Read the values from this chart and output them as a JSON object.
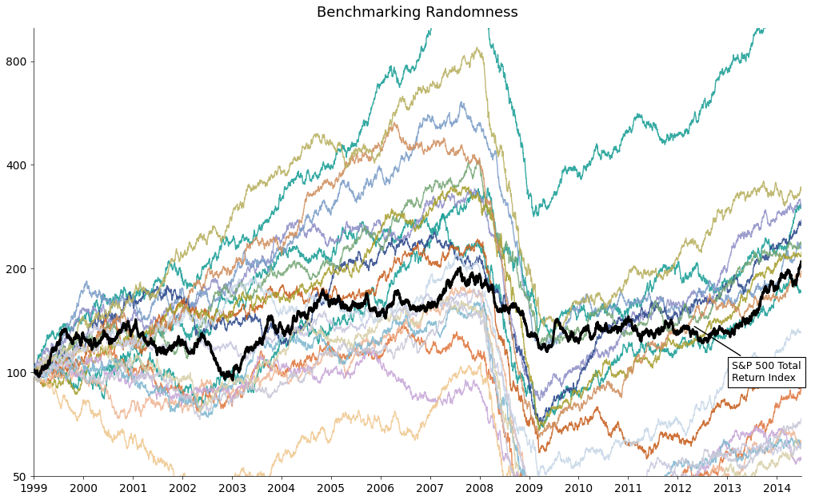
{
  "title": "Benchmarking Randomness",
  "title_fontsize": 13,
  "ylim": [
    50,
    1000
  ],
  "yticks": [
    50,
    100,
    200,
    400,
    800
  ],
  "ytick_labels": [
    "50",
    "100",
    "200",
    "400",
    "800"
  ],
  "xtick_years": [
    1999,
    2000,
    2001,
    2002,
    2003,
    2004,
    2005,
    2006,
    2007,
    2008,
    2009,
    2010,
    2011,
    2012,
    2013,
    2014
  ],
  "sp500_color": "#000000",
  "sp500_linewidth": 2.2,
  "random_linewidth": 1.0,
  "background_color": "#ffffff",
  "annotation_text": "S&P 500 Total\nReturn Index",
  "line_params": [
    {
      "seed": 101,
      "drift": 0.28,
      "vol": 0.15,
      "color": "#1a9e96"
    },
    {
      "seed": 202,
      "drift": 0.24,
      "vol": 0.16,
      "color": "#1a9e96"
    },
    {
      "seed": 303,
      "drift": 0.22,
      "vol": 0.15,
      "color": "#1a9e96"
    },
    {
      "seed": 404,
      "drift": 0.2,
      "vol": 0.14,
      "color": "#9090c8"
    },
    {
      "seed": 505,
      "drift": 0.19,
      "vol": 0.15,
      "color": "#7b9dc8"
    },
    {
      "seed": 606,
      "drift": 0.18,
      "vol": 0.14,
      "color": "#2e4a8c"
    },
    {
      "seed": 707,
      "drift": 0.17,
      "vol": 0.14,
      "color": "#e07840"
    },
    {
      "seed": 808,
      "drift": 0.16,
      "vol": 0.14,
      "color": "#c86020"
    },
    {
      "seed": 909,
      "drift": 0.16,
      "vol": 0.13,
      "color": "#78a878"
    },
    {
      "seed": 1010,
      "drift": 0.15,
      "vol": 0.13,
      "color": "#a8a030"
    },
    {
      "seed": 1111,
      "drift": 0.15,
      "vol": 0.14,
      "color": "#d09060"
    },
    {
      "seed": 1212,
      "drift": 0.14,
      "vol": 0.13,
      "color": "#f0b898"
    },
    {
      "seed": 1313,
      "drift": 0.14,
      "vol": 0.13,
      "color": "#c8a8d8"
    },
    {
      "seed": 1414,
      "drift": 0.13,
      "vol": 0.13,
      "color": "#80b8d0"
    },
    {
      "seed": 1515,
      "drift": 0.13,
      "vol": 0.14,
      "color": "#b8b060"
    },
    {
      "seed": 1616,
      "drift": 0.12,
      "vol": 0.13,
      "color": "#f0c890"
    },
    {
      "seed": 1717,
      "drift": 0.12,
      "vol": 0.13,
      "color": "#d8d0a8"
    },
    {
      "seed": 1818,
      "drift": 0.11,
      "vol": 0.13,
      "color": "#c8d8e8"
    },
    {
      "seed": 1919,
      "drift": 0.11,
      "vol": 0.12,
      "color": "#c8c8e0"
    },
    {
      "seed": 2020,
      "drift": 0.1,
      "vol": 0.12,
      "color": "#c8c8d8"
    }
  ]
}
